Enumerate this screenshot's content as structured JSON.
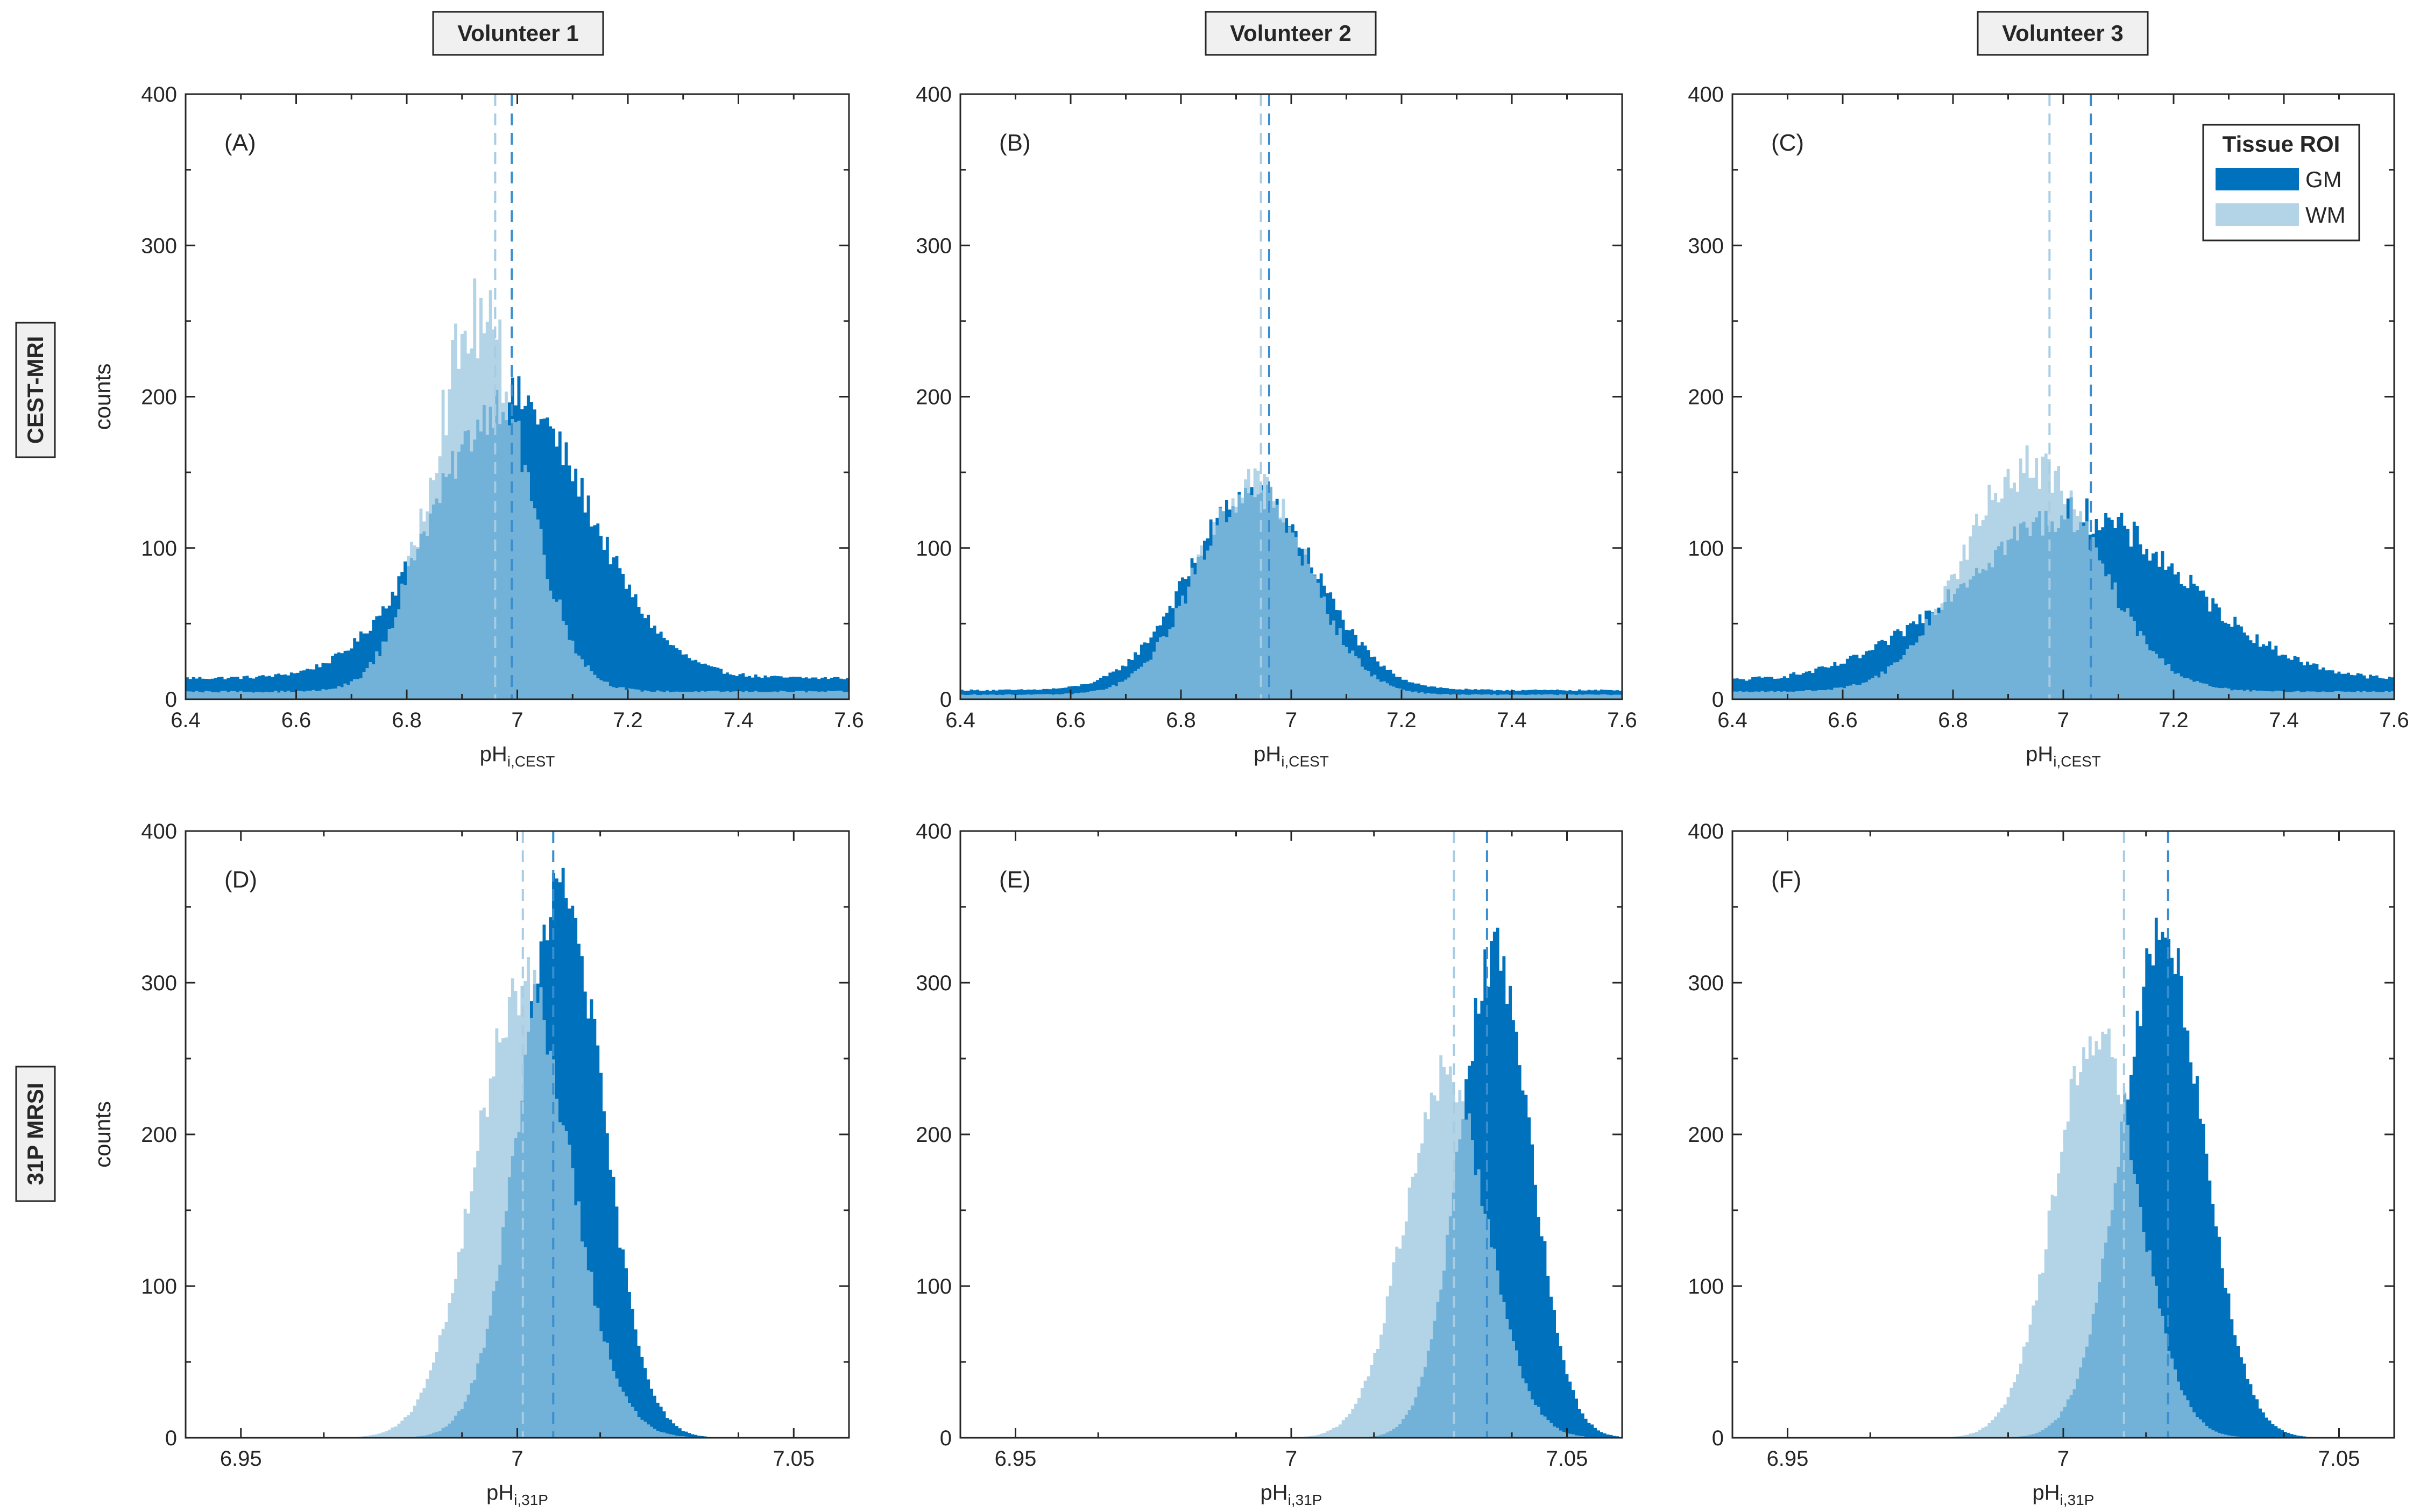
{
  "colors": {
    "gm": "#0072bd",
    "wm": "#b3d4e6",
    "overlap": "#72b1d8",
    "axis": "#262626"
  },
  "column_titles": [
    "Volunteer 1",
    "Volunteer 2",
    "Volunteer 3"
  ],
  "row_titles": [
    "CEST-MRI",
    "31P MRSI"
  ],
  "legend": {
    "title": "Tissue ROI",
    "items": [
      "GM",
      "WM"
    ]
  },
  "chart_data": [
    {
      "type": "histogram",
      "panel": "(A)",
      "volunteer": "Volunteer 1",
      "method": "CEST-MRI",
      "xlabel_main": "pH",
      "xlabel_sub": "i,CEST",
      "ylabel": "counts",
      "xlim": [
        6.4,
        7.6
      ],
      "ylim": [
        0,
        400
      ],
      "xticks": [
        6.4,
        6.6,
        6.8,
        7.0,
        7.2,
        7.4,
        7.6
      ],
      "xticklabels": [
        "6.4",
        "6.6",
        "6.8",
        "7",
        "7.2",
        "7.4",
        "7.6"
      ],
      "yticks": [
        0,
        100,
        200,
        300,
        400
      ],
      "yticklabels": [
        "0",
        "100",
        "200",
        "300",
        "400"
      ],
      "series": [
        {
          "name": "GM",
          "center": 6.99,
          "sd": 0.14,
          "peak": 185,
          "baseline": 14,
          "noise": 0.08,
          "mean_line": 6.99
        },
        {
          "name": "WM",
          "center": 6.93,
          "sd": 0.085,
          "peak": 245,
          "baseline": 5,
          "noise": 0.12,
          "mean_line": 6.96
        }
      ]
    },
    {
      "type": "histogram",
      "panel": "(B)",
      "volunteer": "Volunteer 2",
      "method": "CEST-MRI",
      "xlabel_main": "pH",
      "xlabel_sub": "i,CEST",
      "ylabel": "",
      "xlim": [
        6.4,
        7.6
      ],
      "ylim": [
        0,
        400
      ],
      "xticks": [
        6.4,
        6.6,
        6.8,
        7.0,
        7.2,
        7.4,
        7.6
      ],
      "xticklabels": [
        "6.4",
        "6.6",
        "6.8",
        "7",
        "7.2",
        "7.4",
        "7.6"
      ],
      "yticks": [
        0,
        100,
        200,
        300,
        400
      ],
      "yticklabels": [
        "0",
        "100",
        "200",
        "300",
        "400"
      ],
      "series": [
        {
          "name": "GM",
          "center": 6.93,
          "sd": 0.115,
          "peak": 130,
          "baseline": 6,
          "noise": 0.08,
          "mean_line": 6.96
        },
        {
          "name": "WM",
          "center": 6.93,
          "sd": 0.1,
          "peak": 140,
          "baseline": 3,
          "noise": 0.1,
          "mean_line": 6.945
        }
      ]
    },
    {
      "type": "histogram",
      "panel": "(C)",
      "volunteer": "Volunteer 3",
      "method": "CEST-MRI",
      "xlabel_main": "pH",
      "xlabel_sub": "i,CEST",
      "ylabel": "",
      "xlim": [
        6.4,
        7.6
      ],
      "ylim": [
        0,
        400
      ],
      "xticks": [
        6.4,
        6.6,
        6.8,
        7.0,
        7.2,
        7.4,
        7.6
      ],
      "xticklabels": [
        "6.4",
        "6.6",
        "6.8",
        "7",
        "7.2",
        "7.4",
        "7.6"
      ],
      "yticks": [
        0,
        100,
        200,
        300,
        400
      ],
      "yticklabels": [
        "0",
        "100",
        "200",
        "300",
        "400"
      ],
      "series": [
        {
          "name": "GM",
          "center": 7.02,
          "sd": 0.2,
          "peak": 110,
          "baseline": 12,
          "noise": 0.1,
          "mean_line": 7.05
        },
        {
          "name": "WM",
          "center": 6.94,
          "sd": 0.12,
          "peak": 150,
          "baseline": 5,
          "noise": 0.1,
          "mean_line": 6.975
        }
      ]
    },
    {
      "type": "histogram",
      "panel": "(D)",
      "volunteer": "Volunteer 1",
      "method": "31P MRSI",
      "xlabel_main": "pH",
      "xlabel_sub": "i,31P",
      "ylabel": "counts",
      "xlim": [
        6.94,
        7.06
      ],
      "ylim": [
        0,
        400
      ],
      "xticks": [
        6.95,
        7.0,
        7.05
      ],
      "xticklabels": [
        "6.95",
        "7",
        "7.05"
      ],
      "yticks": [
        0,
        100,
        200,
        300,
        400
      ],
      "yticklabels": [
        "0",
        "100",
        "200",
        "300",
        "400"
      ],
      "series": [
        {
          "name": "GM",
          "center": 7.008,
          "sd": 0.0075,
          "peak": 360,
          "baseline": 0,
          "noise": 0.06,
          "mean_line": 7.0065
        },
        {
          "name": "WM",
          "center": 7.001,
          "sd": 0.0085,
          "peak": 300,
          "baseline": 0,
          "noise": 0.07,
          "mean_line": 7.001
        }
      ]
    },
    {
      "type": "histogram",
      "panel": "(E)",
      "volunteer": "Volunteer 2",
      "method": "31P MRSI",
      "xlabel_main": "pH",
      "xlabel_sub": "i,31P",
      "ylabel": "",
      "xlim": [
        6.94,
        7.06
      ],
      "ylim": [
        0,
        400
      ],
      "xticks": [
        6.95,
        7.0,
        7.05
      ],
      "xticklabels": [
        "6.95",
        "7",
        "7.05"
      ],
      "yticks": [
        0,
        100,
        200,
        300,
        400
      ],
      "yticklabels": [
        "0",
        "100",
        "200",
        "300",
        "400"
      ],
      "series": [
        {
          "name": "GM",
          "center": 7.037,
          "sd": 0.0065,
          "peak": 320,
          "baseline": 0,
          "noise": 0.06,
          "mean_line": 7.0355
        },
        {
          "name": "WM",
          "center": 7.028,
          "sd": 0.0075,
          "peak": 240,
          "baseline": 0,
          "noise": 0.07,
          "mean_line": 7.0295
        }
      ]
    },
    {
      "type": "histogram",
      "panel": "(F)",
      "volunteer": "Volunteer 3",
      "method": "31P MRSI",
      "xlabel_main": "pH",
      "xlabel_sub": "i,31P",
      "ylabel": "",
      "xlim": [
        6.94,
        7.06
      ],
      "ylim": [
        0,
        400
      ],
      "xticks": [
        6.95,
        7.0,
        7.05
      ],
      "xticklabels": [
        "6.95",
        "7",
        "7.05"
      ],
      "yticks": [
        0,
        100,
        200,
        300,
        400
      ],
      "yticklabels": [
        "0",
        "100",
        "200",
        "300",
        "400"
      ],
      "series": [
        {
          "name": "GM",
          "center": 7.018,
          "sd": 0.0075,
          "peak": 330,
          "baseline": 0,
          "noise": 0.06,
          "mean_line": 7.019
        },
        {
          "name": "WM",
          "center": 7.006,
          "sd": 0.0075,
          "peak": 270,
          "baseline": 0,
          "noise": 0.07,
          "mean_line": 7.011
        }
      ]
    }
  ]
}
